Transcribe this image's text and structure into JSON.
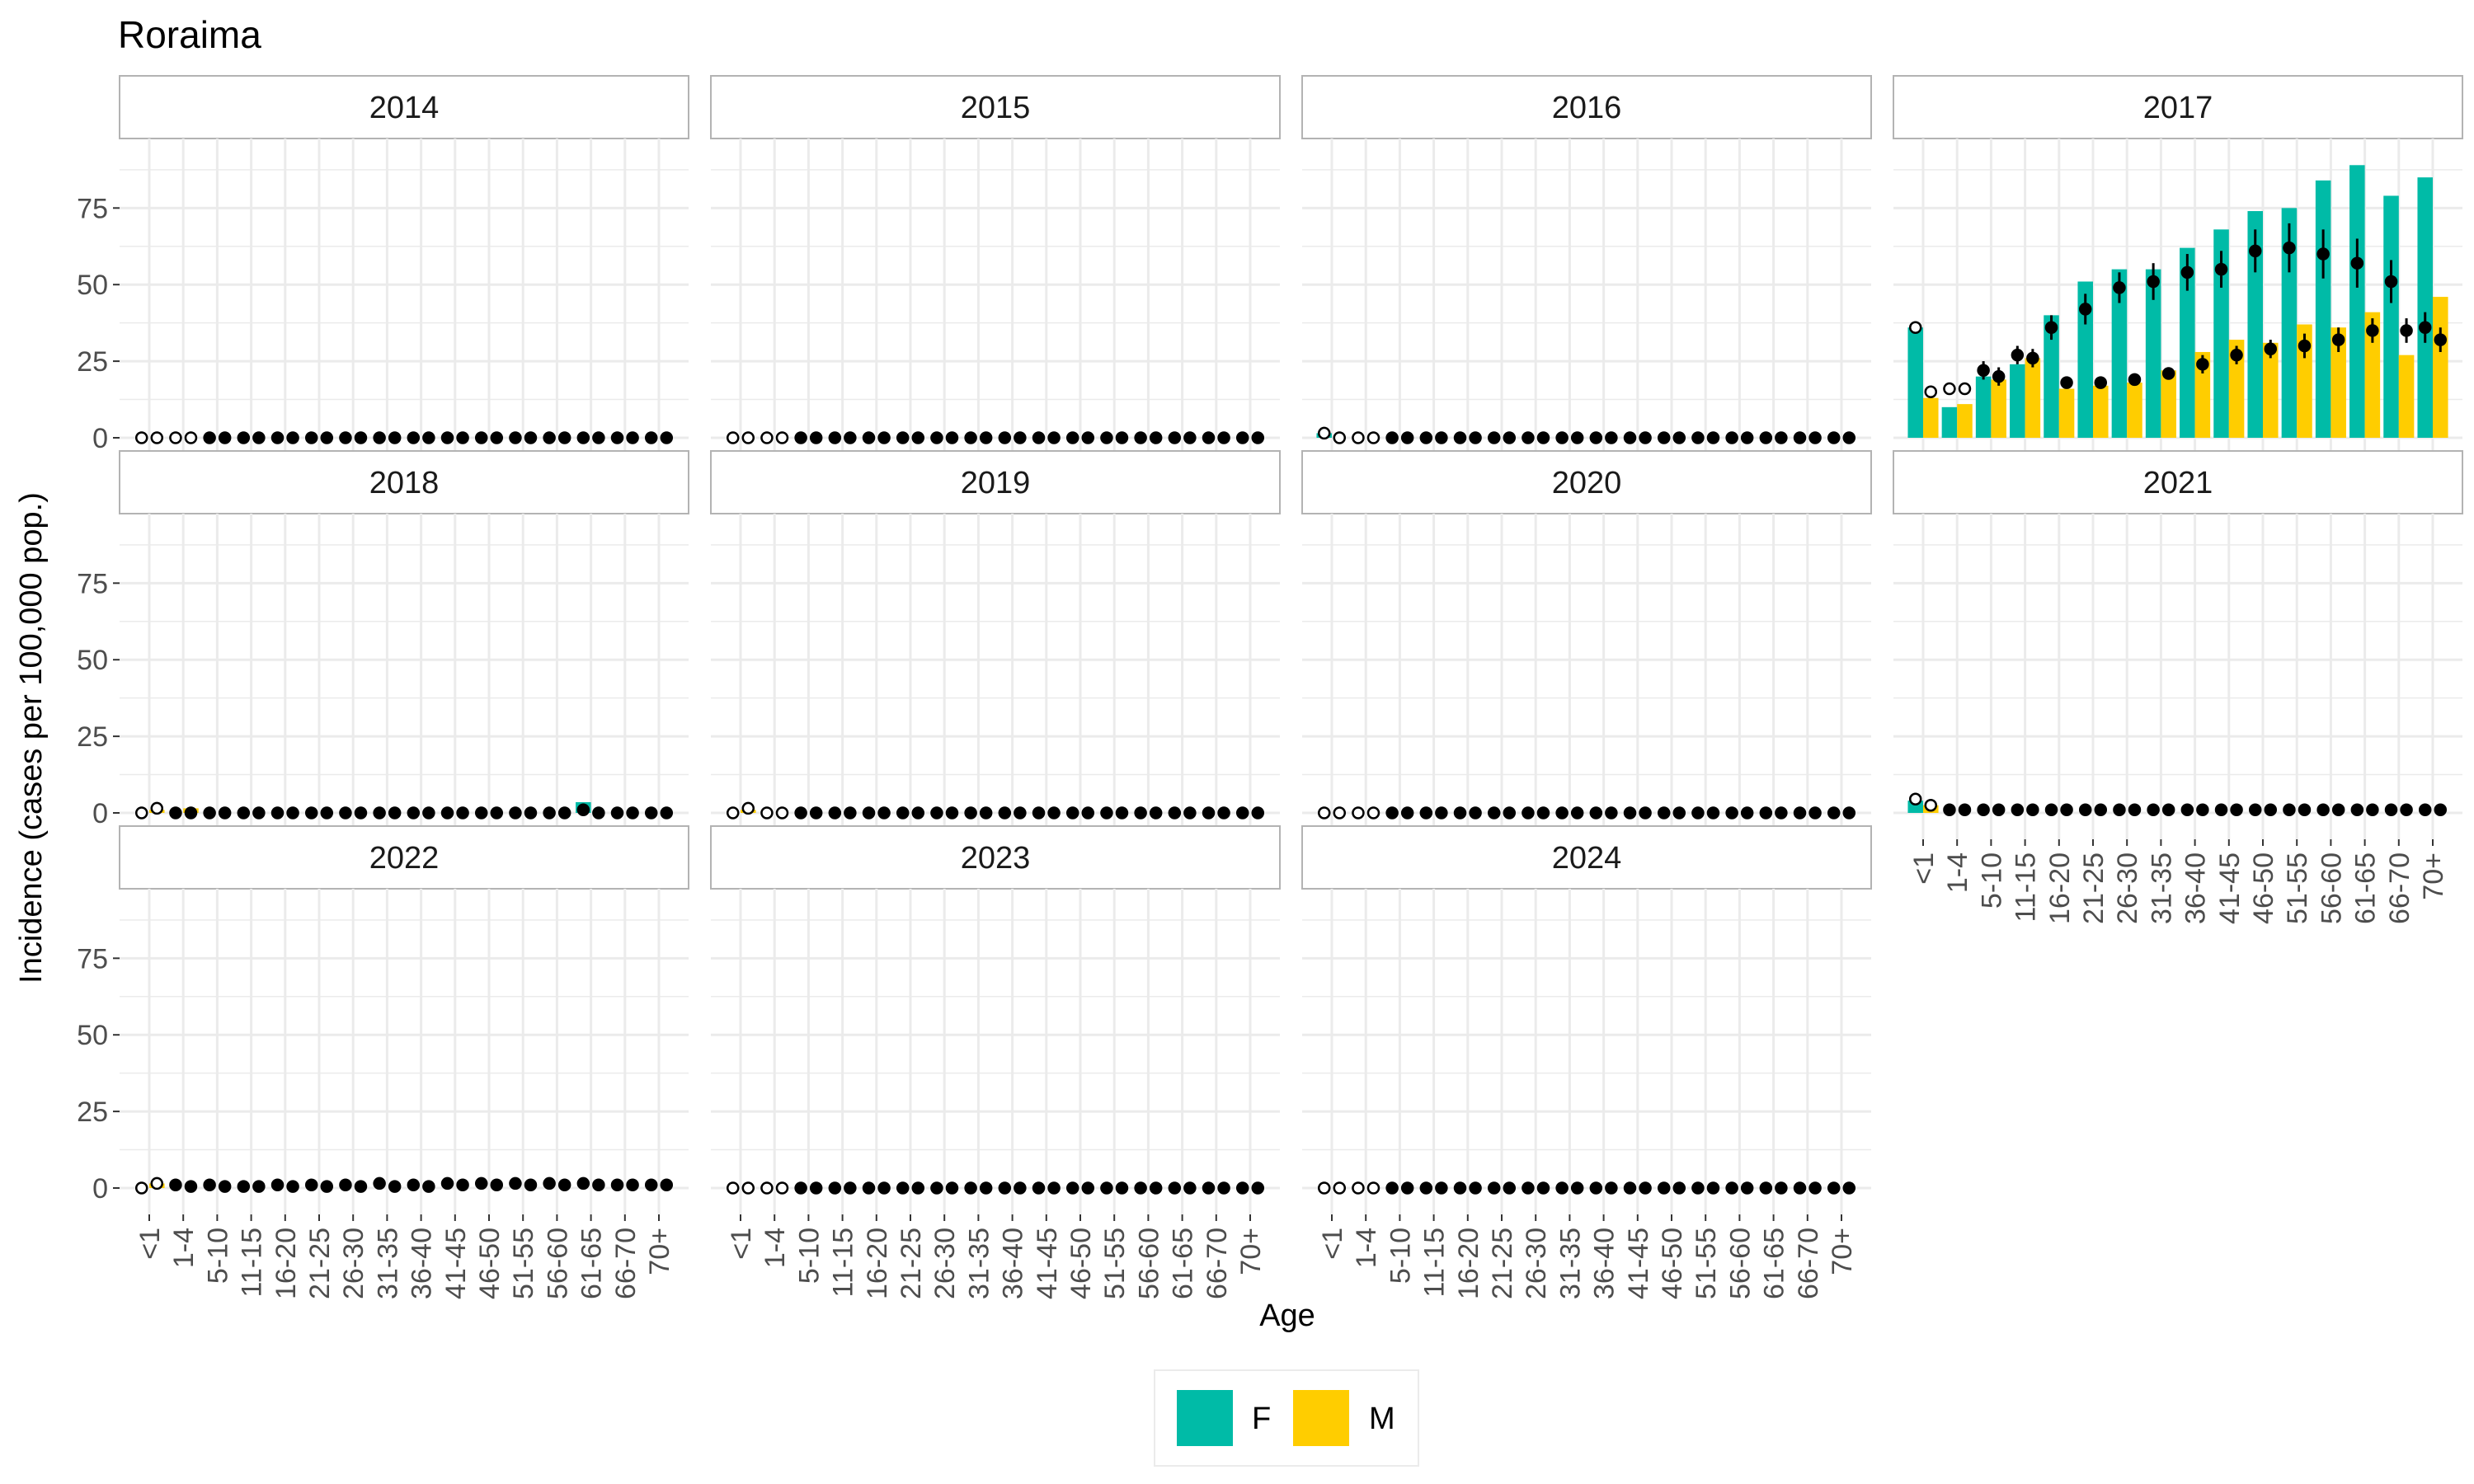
{
  "colors": {
    "F": "#00BBA7",
    "M": "#FFCD00",
    "point": "#000000",
    "strip_fill": "#FFFFFF",
    "strip_border": "#B3B3B3",
    "grid": "#EBEBEB"
  },
  "chart_data": {
    "type": "bar",
    "title": "Roraima",
    "xlabel": "Age",
    "ylabel": "Incidence (cases per 100,000 pop.)",
    "ylim": [
      0,
      95
    ],
    "yticks": [
      0,
      25,
      50,
      75
    ],
    "grid": true,
    "legend": {
      "position": "bottom",
      "entries": [
        "F",
        "M"
      ]
    },
    "categories": [
      "<1",
      "1-4",
      "5-10",
      "11-15",
      "16-20",
      "21-25",
      "26-30",
      "31-35",
      "36-40",
      "41-45",
      "46-50",
      "51-55",
      "56-60",
      "61-65",
      "66-70",
      "70+"
    ],
    "panels": [
      {
        "year": "2014",
        "F": [
          0,
          0,
          0,
          0,
          0,
          0,
          0,
          0,
          0,
          0,
          0,
          0,
          0,
          0,
          0,
          0
        ],
        "M": [
          0,
          0,
          0,
          0,
          0,
          0,
          0,
          0,
          0,
          0,
          0,
          0,
          0,
          0,
          0,
          0
        ],
        "points_F": [
          0,
          0,
          0,
          0,
          0,
          0,
          0,
          0,
          0,
          0,
          0,
          0,
          0,
          0,
          0,
          0
        ],
        "points_M": [
          0,
          0,
          0,
          0,
          0,
          0,
          0,
          0,
          0,
          0,
          0,
          0,
          0,
          0,
          0,
          0
        ]
      },
      {
        "year": "2015",
        "F": [
          0,
          0,
          0,
          0,
          0,
          0,
          0,
          0,
          0,
          0,
          0,
          0,
          0,
          0,
          0,
          0
        ],
        "M": [
          0,
          0,
          0,
          0,
          0,
          0,
          0,
          0,
          0,
          0,
          0,
          0,
          0,
          0,
          0,
          0
        ],
        "points_F": [
          0,
          0,
          0,
          0,
          0,
          0,
          0,
          0,
          0,
          0,
          0,
          0,
          0,
          0,
          0,
          0
        ],
        "points_M": [
          0,
          0,
          0,
          0,
          0,
          0,
          0,
          0,
          0,
          0,
          0,
          0,
          0,
          0,
          0,
          0
        ]
      },
      {
        "year": "2016",
        "F": [
          1.5,
          0,
          0,
          0,
          0,
          0,
          0,
          0,
          0,
          0,
          0,
          0,
          0,
          0,
          0,
          0
        ],
        "M": [
          0,
          0,
          0,
          0,
          0,
          0,
          0,
          0,
          0,
          0,
          0,
          0,
          0,
          0,
          0,
          0
        ],
        "points_F": [
          1.5,
          0,
          0,
          0,
          0,
          0,
          0,
          0,
          0,
          0,
          0,
          0,
          0,
          0,
          0,
          0
        ],
        "points_M": [
          0,
          0,
          0,
          0,
          0,
          0,
          0,
          0,
          0,
          0,
          0,
          0,
          0,
          0,
          0,
          0
        ]
      },
      {
        "year": "2017",
        "F": [
          36,
          10,
          20,
          24,
          40,
          51,
          55,
          55,
          62,
          68,
          74,
          75,
          84,
          89,
          79,
          85
        ],
        "M": [
          13,
          11,
          19,
          26,
          16,
          17,
          18,
          22,
          28,
          32,
          31,
          37,
          36,
          41,
          27,
          46
        ],
        "points_F": [
          36,
          16,
          22,
          27,
          36,
          42,
          49,
          51,
          54,
          55,
          61,
          62,
          60,
          57,
          51,
          36
        ],
        "points_M": [
          15,
          16,
          20,
          26,
          18,
          18,
          19,
          21,
          24,
          27,
          29,
          30,
          32,
          35,
          35,
          32
        ],
        "err_F": [
          0,
          0,
          3,
          3,
          4,
          5,
          5,
          6,
          6,
          6,
          7,
          8,
          8,
          8,
          7,
          5
        ],
        "err_M": [
          0,
          0,
          3,
          3,
          2,
          2,
          2,
          2,
          3,
          3,
          3,
          4,
          4,
          4,
          4,
          4
        ]
      },
      {
        "year": "2018",
        "F": [
          0,
          0,
          0,
          0,
          0,
          0,
          0,
          0,
          0,
          0,
          0,
          0,
          0,
          3.5,
          0,
          0
        ],
        "M": [
          1,
          1.5,
          0,
          0,
          0,
          0,
          0,
          0,
          0,
          0,
          0,
          0,
          0,
          0,
          0,
          0
        ],
        "points_F": [
          0,
          0,
          0,
          0,
          0,
          0,
          0,
          0,
          0,
          0,
          0,
          0,
          0,
          1,
          0,
          0
        ],
        "points_M": [
          1.5,
          0,
          0,
          0,
          0,
          0,
          0,
          0,
          0,
          0,
          0,
          0,
          0,
          0,
          0,
          0
        ]
      },
      {
        "year": "2019",
        "F": [
          0,
          0,
          0,
          0,
          0,
          0,
          0,
          0,
          0,
          0,
          0,
          0,
          0,
          0,
          0,
          0
        ],
        "M": [
          1,
          0,
          0,
          0,
          0,
          0,
          0,
          0,
          0,
          0,
          0,
          0,
          0,
          0,
          0,
          0
        ],
        "points_F": [
          0,
          0,
          0,
          0,
          0,
          0,
          0,
          0,
          0,
          0,
          0,
          0,
          0,
          0,
          0,
          0
        ],
        "points_M": [
          1.5,
          0,
          0,
          0,
          0,
          0,
          0,
          0,
          0,
          0,
          0,
          0,
          0,
          0,
          0,
          0
        ]
      },
      {
        "year": "2020",
        "F": [
          0,
          0,
          0,
          0,
          0,
          0,
          0,
          0,
          0,
          0,
          0,
          0,
          0,
          0,
          0,
          0
        ],
        "M": [
          0,
          0,
          0,
          0,
          0,
          0,
          0,
          0,
          0,
          0,
          0,
          0,
          0,
          0,
          0,
          0
        ],
        "points_F": [
          0,
          0,
          0,
          0,
          0,
          0,
          0,
          0,
          0,
          0,
          0,
          0,
          0,
          0,
          0,
          0
        ],
        "points_M": [
          0,
          0,
          0,
          0,
          0,
          0,
          0,
          0,
          0,
          0,
          0,
          0,
          0,
          0,
          0,
          0
        ]
      },
      {
        "year": "2021",
        "F": [
          4,
          0,
          0,
          0,
          0,
          0,
          0,
          0,
          0,
          0,
          0,
          0,
          0,
          0,
          0,
          0
        ],
        "M": [
          2.5,
          0,
          0,
          0,
          0,
          0,
          0,
          0,
          0,
          0,
          0,
          0,
          0,
          0,
          0,
          0
        ],
        "points_F": [
          4.5,
          1,
          1,
          1,
          1,
          1,
          1,
          1,
          1,
          1,
          1,
          1,
          1,
          1,
          1,
          1
        ],
        "points_M": [
          2.5,
          1,
          1,
          1,
          1,
          1,
          1,
          1,
          1,
          1,
          1,
          1,
          1,
          1,
          1,
          1
        ]
      },
      {
        "year": "2022",
        "F": [
          0,
          0,
          0,
          0,
          0,
          0,
          0,
          0,
          0,
          0,
          0,
          0,
          0,
          0,
          0,
          0
        ],
        "M": [
          1.5,
          0,
          0,
          0,
          0,
          0,
          0,
          0,
          0,
          0,
          0,
          0,
          0,
          0,
          0,
          0
        ],
        "points_F": [
          0,
          1,
          1,
          0.5,
          1,
          1,
          1,
          1.5,
          1,
          1.5,
          1.5,
          1.5,
          1.5,
          1.5,
          1,
          1
        ],
        "points_M": [
          1.5,
          0.5,
          0.5,
          0.5,
          0.5,
          0.5,
          0.5,
          0.5,
          0.5,
          1,
          1,
          1,
          1,
          1,
          1,
          1
        ]
      },
      {
        "year": "2023",
        "F": [
          0,
          0,
          0,
          0,
          0,
          0,
          0,
          0,
          0,
          0,
          0,
          0,
          0,
          0,
          0,
          0
        ],
        "M": [
          0,
          0,
          0,
          0,
          0,
          0,
          0,
          0,
          0,
          0,
          0,
          0,
          0,
          0,
          0,
          0
        ],
        "points_F": [
          0,
          0,
          0,
          0,
          0,
          0,
          0,
          0,
          0,
          0,
          0,
          0,
          0,
          0,
          0,
          0
        ],
        "points_M": [
          0,
          0,
          0,
          0,
          0,
          0,
          0,
          0,
          0,
          0,
          0,
          0,
          0,
          0,
          0,
          0
        ]
      },
      {
        "year": "2024",
        "F": [
          0,
          0,
          0,
          0,
          0,
          0,
          0,
          0,
          0,
          0,
          0,
          0,
          0,
          0,
          0,
          0
        ],
        "M": [
          0,
          0,
          0,
          0,
          0,
          0,
          0,
          0,
          0,
          0,
          0,
          0,
          0,
          0,
          0,
          0
        ],
        "points_F": [
          0,
          0,
          0,
          0,
          0,
          0,
          0,
          0,
          0,
          0,
          0,
          0,
          0,
          0,
          0,
          0
        ],
        "points_M": [
          0,
          0,
          0,
          0,
          0,
          0,
          0,
          0,
          0,
          0,
          0,
          0,
          0,
          0,
          0,
          0
        ]
      }
    ]
  }
}
